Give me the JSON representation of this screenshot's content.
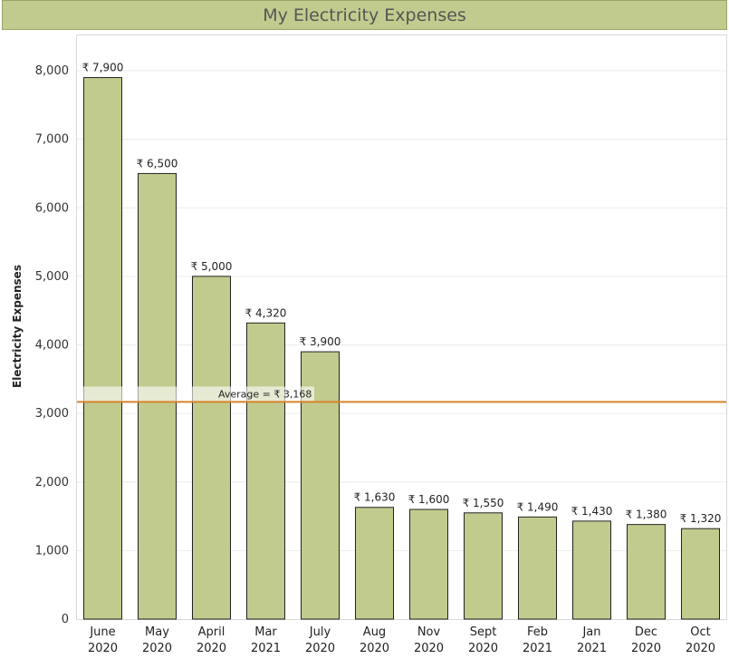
{
  "chart_data": {
    "type": "bar",
    "title": "My Electricity Expenses",
    "xlabel": "",
    "ylabel": "Electricity Expenses",
    "ylim": [
      0,
      8000
    ],
    "yticks": [
      "0",
      "1,000",
      "2,000",
      "3,000",
      "4,000",
      "5,000",
      "6,000",
      "7,000",
      "8,000"
    ],
    "grid": true,
    "categories": [
      {
        "month": "June",
        "year": "2020"
      },
      {
        "month": "May",
        "year": "2020"
      },
      {
        "month": "April",
        "year": "2020"
      },
      {
        "month": "Mar",
        "year": "2021"
      },
      {
        "month": "July",
        "year": "2020"
      },
      {
        "month": "Aug",
        "year": "2020"
      },
      {
        "month": "Nov",
        "year": "2020"
      },
      {
        "month": "Sept",
        "year": "2020"
      },
      {
        "month": "Feb",
        "year": "2021"
      },
      {
        "month": "Jan",
        "year": "2021"
      },
      {
        "month": "Dec",
        "year": "2020"
      },
      {
        "month": "Oct",
        "year": "2020"
      }
    ],
    "values": [
      7900,
      6500,
      5000,
      4320,
      3900,
      1630,
      1600,
      1550,
      1490,
      1430,
      1380,
      1320
    ],
    "data_labels": [
      "₹ 7,900",
      "₹ 6,500",
      "₹ 5,000",
      "₹ 4,320",
      "₹ 3,900",
      "₹ 1,630",
      "₹ 1,600",
      "₹ 1,550",
      "₹ 1,490",
      "₹ 1,430",
      "₹ 1,380",
      "₹ 1,320"
    ],
    "average": {
      "value": 3168,
      "label": "Average = ₹ 3,168"
    },
    "colors": {
      "bar": "#c2cb8e",
      "bar_stroke": "#222222",
      "average_line": "#d9822b",
      "title_bg": "#c2cb8e"
    }
  }
}
